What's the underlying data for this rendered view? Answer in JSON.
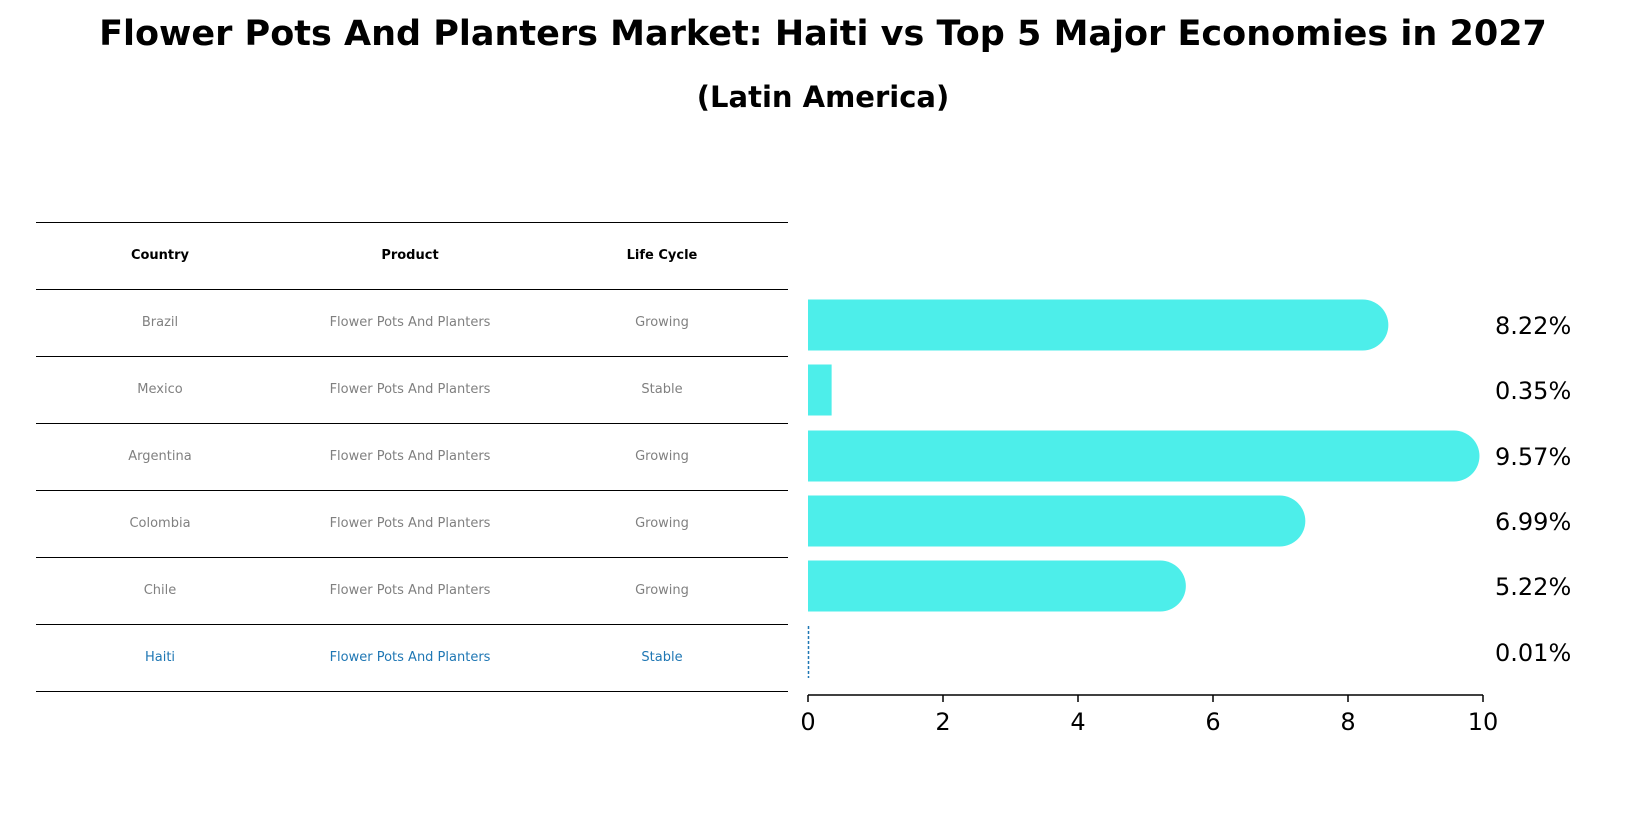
{
  "title": "Flower Pots And Planters Market: Haiti vs Top 5 Major Economies in 2027",
  "subtitle": "(Latin America)",
  "table": {
    "headers": [
      "Country",
      "Product",
      "Life Cycle"
    ],
    "rows": [
      {
        "country": "Brazil",
        "product": "Flower Pots And Planters",
        "life_cycle": "Growing"
      },
      {
        "country": "Mexico",
        "product": "Flower Pots And Planters",
        "life_cycle": "Stable"
      },
      {
        "country": "Argentina",
        "product": "Flower Pots And Planters",
        "life_cycle": "Growing"
      },
      {
        "country": "Colombia",
        "product": "Flower Pots And Planters",
        "life_cycle": "Growing"
      },
      {
        "country": "Chile",
        "product": "Flower Pots And Planters",
        "life_cycle": "Growing"
      },
      {
        "country": "Haiti",
        "product": "Flower Pots And Planters",
        "life_cycle": "Stable"
      }
    ]
  },
  "chart_data": {
    "type": "bar",
    "orientation": "horizontal",
    "categories": [
      "Brazil",
      "Mexico",
      "Argentina",
      "Colombia",
      "Chile",
      "Haiti"
    ],
    "values": [
      8.22,
      0.35,
      9.57,
      6.99,
      5.22,
      0.01
    ],
    "value_labels": [
      "8.22%",
      "0.35%",
      "9.57%",
      "6.99%",
      "5.22%",
      "0.01%"
    ],
    "xlim": [
      0,
      10
    ],
    "xticks": [
      0,
      2,
      4,
      6,
      8,
      10
    ],
    "highlight": "Haiti",
    "bar_color": "#4DEEEA",
    "highlight_color": "#1f77b4",
    "grid": false
  }
}
